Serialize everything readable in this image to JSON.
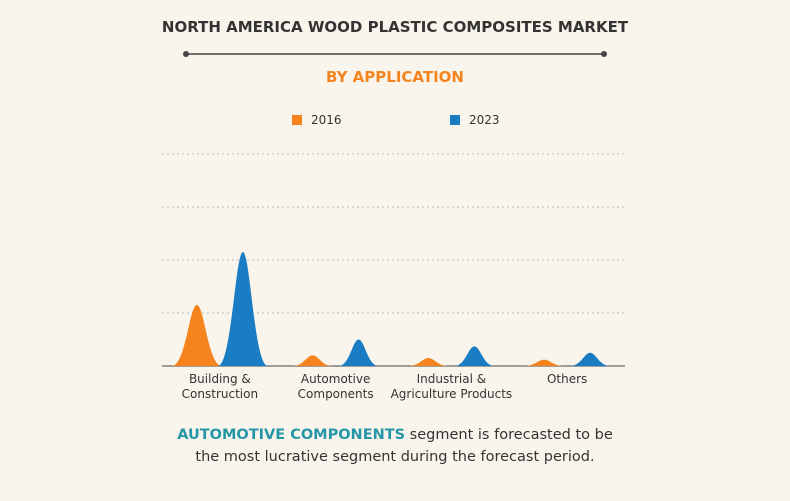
{
  "chart_data": {
    "type": "peak",
    "title": "NORTH AMERICA WOOD PLASTIC COMPOSITES MARKET",
    "subtitle": "BY APPLICATION",
    "categories": [
      "Building &\nConstruction",
      "Automotive\nComponents",
      "Industrial &\nAgriculture Products",
      "Others"
    ],
    "series": [
      {
        "name": "2016",
        "color": "#f5841f",
        "values": [
          1.15,
          0.2,
          0.15,
          0.12
        ]
      },
      {
        "name": "2023",
        "color": "#1a7dc4",
        "values": [
          2.15,
          0.5,
          0.37,
          0.25
        ]
      }
    ],
    "ylim": [
      0,
      4
    ],
    "yticks": [
      1,
      2,
      3,
      4
    ],
    "grid": true,
    "footer": {
      "highlight": "AUTOMOTIVE COMPONENTS",
      "text": " segment is forecasted to be the most lucrative segment during the forecast period."
    }
  }
}
